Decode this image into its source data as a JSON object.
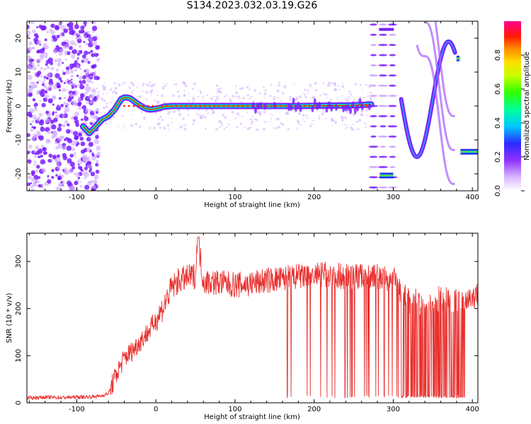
{
  "page_title": "S134.2023.032.03.19.G26",
  "colors": {
    "snr_line": "#e8312f",
    "axis": "#000000",
    "colormap": [
      "#ffffff",
      "#e9d6ff",
      "#b46bff",
      "#7a1cff",
      "#2b2bff",
      "#00c8ff",
      "#00ff80",
      "#5dff00",
      "#ffff00",
      "#ff8c00",
      "#ff0000",
      "#ff0090"
    ]
  },
  "chart_data": [
    {
      "type": "heatmap",
      "title": "S134.2023.032.03.19.G26",
      "xlabel": "Height of straight line (km)",
      "ylabel": "Frequency (Hz)",
      "xlim": [
        -163,
        407
      ],
      "ylim": [
        -25,
        25
      ],
      "x_ticks": [
        -100,
        0,
        100,
        200,
        300,
        400
      ],
      "y_ticks": [
        -20,
        -10,
        0,
        10,
        20
      ],
      "colorbar": {
        "label": "Normalized spectral amplitude",
        "range": [
          0.0,
          1.0
        ],
        "ticks": [
          0.0,
          0.2,
          0.4,
          0.6,
          0.8
        ]
      },
      "main_trace": {
        "x": [
          -92,
          -88,
          -84,
          -80,
          -76,
          -72,
          -68,
          -64,
          -60,
          -56,
          -52,
          -48,
          -44,
          -40,
          -36,
          -32,
          -28,
          -24,
          -20,
          -16,
          -12,
          -8,
          -4,
          0,
          5,
          10,
          20,
          30,
          40,
          60,
          80,
          100,
          140,
          180,
          220,
          250,
          260,
          272
        ],
        "y": [
          -6,
          -7,
          -8,
          -7,
          -6,
          -5,
          -4,
          -3.5,
          -3,
          -2,
          -1,
          0.5,
          2,
          2.5,
          2.5,
          2.2,
          1.5,
          0.8,
          0.2,
          -0.4,
          -0.8,
          -1,
          -1,
          -0.8,
          -0.6,
          -0.2,
          0,
          0,
          0,
          0,
          0,
          0,
          0,
          0,
          0.1,
          0.2,
          0.3,
          0.5
        ]
      },
      "side_traces": [
        {
          "x": [
            380,
            383
          ],
          "y": [
            14,
            14
          ]
        },
        {
          "x": [
            385,
            407
          ],
          "y": [
            -13.5,
            -13.5
          ]
        },
        {
          "x": [
            283,
            300
          ],
          "y": [
            -20.5,
            -20.5
          ]
        }
      ]
    },
    {
      "type": "line",
      "xlabel": "Height of straight line (km)",
      "ylabel": "SNR (10 * v/v)",
      "xlim": [
        -163,
        407
      ],
      "ylim": [
        0,
        360
      ],
      "x_ticks": [
        -100,
        0,
        100,
        200,
        300,
        400
      ],
      "y_ticks": [
        0,
        100,
        200,
        300
      ],
      "series": [
        {
          "x": [
            -163,
            -140,
            -120,
            -100,
            -80,
            -70,
            -60,
            -50,
            -40,
            -30,
            -20,
            -10,
            0,
            10,
            20,
            30,
            40,
            50,
            53,
            60,
            80,
            100,
            120,
            140,
            160,
            180,
            200,
            220,
            240,
            260,
            280,
            300,
            310,
            320,
            340,
            360,
            380,
            400,
            407
          ],
          "y": [
            10,
            12,
            11,
            12,
            13,
            14,
            20,
            60,
            95,
            110,
            130,
            150,
            175,
            205,
            245,
            260,
            265,
            270,
            350,
            258,
            255,
            250,
            252,
            260,
            262,
            268,
            270,
            272,
            268,
            270,
            268,
            262,
            235,
            215,
            215,
            220,
            220,
            225,
            228
          ]
        }
      ],
      "dropouts": {
        "x_range": [
          165,
          392
        ],
        "low_value": 10
      }
    }
  ]
}
